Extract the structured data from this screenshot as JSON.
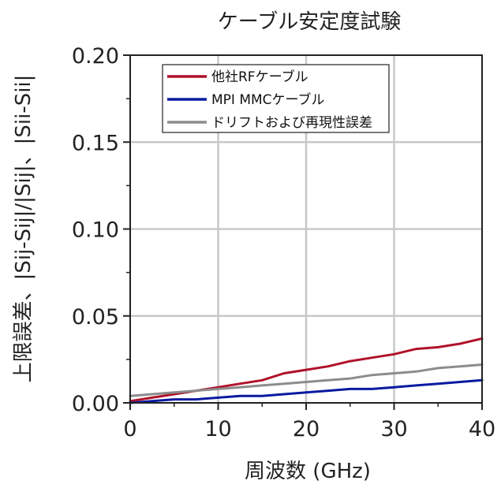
{
  "chart_data": {
    "type": "line",
    "title": "ケーブル安定度試験",
    "xlabel": "周波数 (GHz)",
    "ylabel": "上限誤差、|Sij-Sij|/|Sij|、|Sii-Sii|",
    "xlim": [
      0,
      40
    ],
    "ylim": [
      0,
      0.2
    ],
    "x_ticks": [
      "0",
      "10",
      "20",
      "30",
      "40"
    ],
    "y_ticks": [
      "0.00",
      "0.05",
      "0.10",
      "0.15",
      "0.20"
    ],
    "grid": true,
    "legend_position": "top-left",
    "x": [
      0,
      2.5,
      5,
      7.5,
      10,
      12.5,
      15,
      17.5,
      20,
      22.5,
      25,
      27.5,
      30,
      32.5,
      35,
      37.5,
      40
    ],
    "series": [
      {
        "name": "他社RFケーブル",
        "color": "#b0122a",
        "values": [
          0.001,
          0.003,
          0.005,
          0.007,
          0.009,
          0.011,
          0.013,
          0.017,
          0.019,
          0.021,
          0.024,
          0.026,
          0.028,
          0.031,
          0.032,
          0.034,
          0.037
        ]
      },
      {
        "name": "MPI MMCケーブル",
        "color": "#0a1aa0",
        "values": [
          0.0,
          0.001,
          0.002,
          0.002,
          0.003,
          0.004,
          0.004,
          0.005,
          0.006,
          0.007,
          0.008,
          0.008,
          0.009,
          0.01,
          0.011,
          0.012,
          0.013
        ]
      },
      {
        "name": "ドリフトおよび再現性誤差",
        "color": "#8c8c8c",
        "values": [
          0.004,
          0.005,
          0.006,
          0.007,
          0.008,
          0.009,
          0.01,
          0.011,
          0.012,
          0.013,
          0.014,
          0.016,
          0.017,
          0.018,
          0.02,
          0.021,
          0.022
        ]
      }
    ]
  }
}
